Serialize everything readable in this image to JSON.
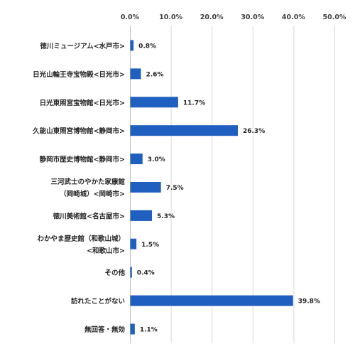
{
  "chart_data": {
    "type": "bar",
    "orientation": "horizontal",
    "categories": [
      [
        "徳川ミュージアム<水戸市>"
      ],
      [
        "日光山輪王寺宝物殿<日光市>"
      ],
      [
        "日光東照宮宝物館<日光市>"
      ],
      [
        "久能山東照宮博物館<静岡市>"
      ],
      [
        "静岡市歴史博物館<静岡市>"
      ],
      [
        "三河武士のやかた家康館",
        "（岡崎城）<岡崎市>"
      ],
      [
        "徳川美術館<名古屋市>"
      ],
      [
        "わかやま歴史館（和歌山城）",
        "<和歌山市>"
      ],
      [
        "その他"
      ],
      [
        "訪れたことがない"
      ],
      [
        "無回答・無効"
      ]
    ],
    "values": [
      0.8,
      2.6,
      11.7,
      26.3,
      3.0,
      7.5,
      5.3,
      1.5,
      0.4,
      39.8,
      1.1
    ],
    "data_labels": [
      "0.8%",
      "2.6%",
      "11.7%",
      "26.3%",
      "3.0%",
      "7.5%",
      "5.3%",
      "1.5%",
      "0.4%",
      "39.8%",
      "1.1%"
    ],
    "xlim": [
      0,
      50
    ],
    "x_ticks": [
      0,
      10,
      20,
      30,
      40,
      50
    ],
    "x_tick_labels": [
      "0.0%",
      "10.0%",
      "20.0%",
      "30.0%",
      "40.0%",
      "50.0%"
    ],
    "x_axis_position": "top",
    "grid": true,
    "legend": "none",
    "bar_color": "#1f5fbf"
  }
}
